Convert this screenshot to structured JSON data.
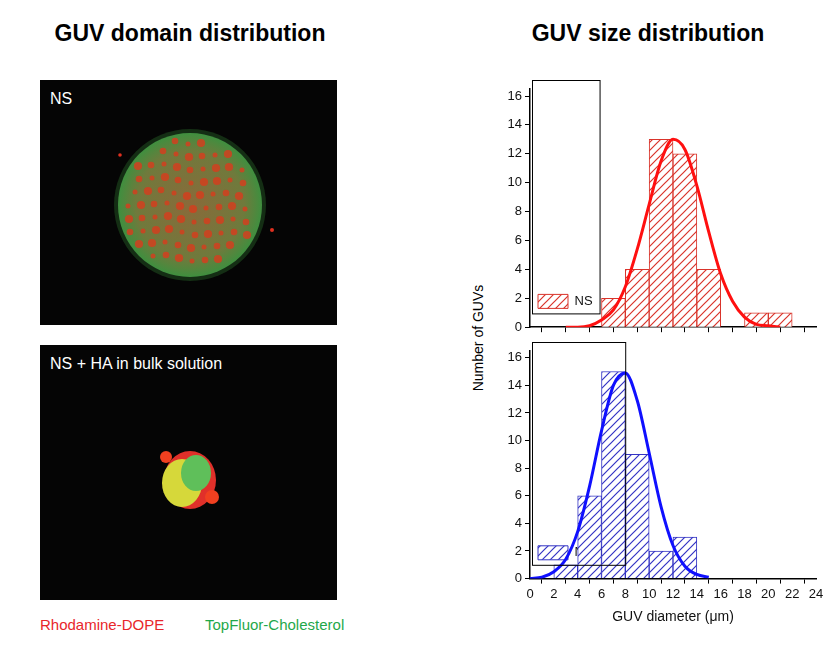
{
  "panel_titles": [
    "GUV domain distribution",
    "GUV size distribution"
  ],
  "images": [
    {
      "label": "NS"
    },
    {
      "label": "NS + HA in bulk solution"
    }
  ],
  "image_legend": [
    {
      "name": "Rhodamine-DOPE",
      "color": "#e8262b"
    },
    {
      "name": "TopFluor-Cholesterol",
      "color": "#1fa84a"
    }
  ],
  "ylabel": "Number of GUVs",
  "chart_data": [
    {
      "type": "bar",
      "bins": [
        6,
        8,
        10,
        12,
        14,
        16,
        18,
        20,
        22
      ],
      "series": [
        {
          "name": "NS",
          "type": "bar",
          "color": "#d9342b",
          "values": [
            2,
            4,
            13,
            12,
            4,
            0,
            1,
            1
          ]
        },
        {
          "type": "line",
          "color": "#ff1010",
          "x": [
            3,
            4,
            5,
            6,
            7,
            8,
            9,
            10,
            11,
            12,
            13,
            14,
            15,
            16,
            17,
            18,
            19,
            20,
            21
          ],
          "values": [
            0.0,
            0.0,
            0.1,
            0.5,
            1.2,
            2.8,
            5.4,
            8.5,
            11.5,
            13.0,
            12.3,
            9.8,
            6.6,
            3.7,
            1.8,
            0.7,
            0.2,
            0.1,
            0.0
          ]
        }
      ],
      "xlim": [
        0,
        24
      ],
      "xticks": [
        0,
        2,
        4,
        6,
        8,
        10,
        12,
        14,
        16,
        18,
        20,
        22,
        24
      ],
      "ylim": [
        0,
        16.5
      ],
      "yticks": [
        0,
        2,
        4,
        6,
        8,
        10,
        12,
        14,
        16
      ],
      "grid": false,
      "legend": "upper right",
      "tick_labels": "y"
    },
    {
      "type": "bar",
      "bins": [
        2,
        4,
        6,
        8,
        10,
        12,
        14
      ],
      "series": [
        {
          "name": "NS+HA",
          "type": "bar",
          "color": "#3434c4",
          "values": [
            1,
            6,
            15,
            9,
            2,
            3
          ]
        },
        {
          "type": "line",
          "color": "#1010ff",
          "x": [
            0,
            1,
            2,
            3,
            4,
            5,
            6,
            7,
            8,
            9,
            10,
            11,
            12,
            13,
            14,
            15
          ],
          "values": [
            0.0,
            0.1,
            0.5,
            1.4,
            3.4,
            6.7,
            10.7,
            14.0,
            14.9,
            12.9,
            9.1,
            5.2,
            2.4,
            0.9,
            0.3,
            0.1
          ]
        }
      ],
      "xlabel": "GUV diameter (μm)",
      "xlim": [
        0,
        24
      ],
      "xticks": [
        0,
        2,
        4,
        6,
        8,
        10,
        12,
        14,
        16,
        18,
        20,
        22,
        24
      ],
      "ylim": [
        0,
        16.5
      ],
      "yticks": [
        0,
        2,
        4,
        6,
        8,
        10,
        12,
        14,
        16
      ],
      "grid": false,
      "legend": "upper right"
    }
  ]
}
